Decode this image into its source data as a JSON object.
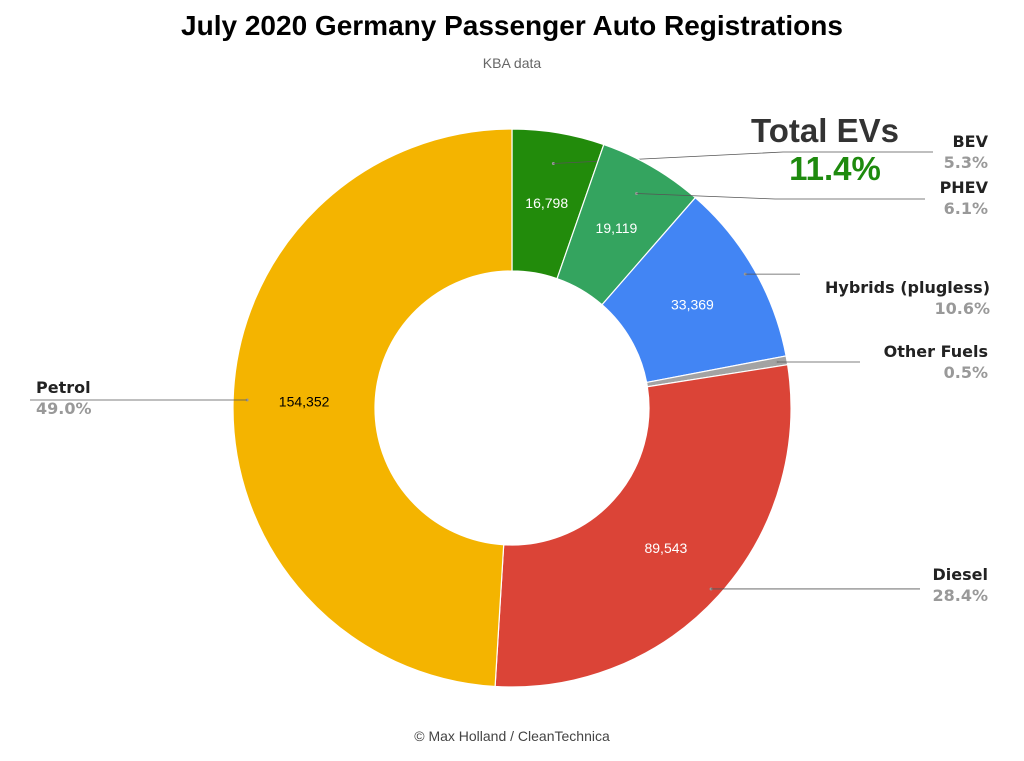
{
  "header": {
    "title": "July 2020 Germany Passenger Auto Registrations",
    "subtitle": "KBA data"
  },
  "footer": {
    "credit": "© Max Holland / CleanTechnica"
  },
  "ev_callout": {
    "label": "Total EVs",
    "value": "11.4%"
  },
  "chart_data": {
    "type": "pie",
    "donut": true,
    "title": "July 2020 Germany Passenger Auto Registrations",
    "subtitle": "KBA data",
    "legend": "none",
    "slices": [
      {
        "label": "BEV",
        "value": 16798,
        "value_label": "16,798",
        "percent_label": "5.3%",
        "color": "#228b0b",
        "inner_text_color": "#ffffff"
      },
      {
        "label": "PHEV",
        "value": 19119,
        "value_label": "19,119",
        "percent_label": "6.1%",
        "color": "#34a45f",
        "inner_text_color": "#ffffff"
      },
      {
        "label": "Hybrids (plugless)",
        "value": 33369,
        "value_label": "33,369",
        "percent_label": "10.6%",
        "color": "#4285f4",
        "inner_text_color": "#ffffff"
      },
      {
        "label": "Other Fuels",
        "value": 1600,
        "value_label": "",
        "percent_label": "0.5%",
        "color": "#a3a3a3",
        "inner_text_color": "#ffffff"
      },
      {
        "label": "Diesel",
        "value": 89543,
        "value_label": "89,543",
        "percent_label": "28.4%",
        "color": "#db4437",
        "inner_text_color": "#ffffff"
      },
      {
        "label": "Petrol",
        "value": 154352,
        "value_label": "154,352",
        "percent_label": "49.0%",
        "color": "#f4b400",
        "inner_text_color": "#000000"
      }
    ]
  }
}
